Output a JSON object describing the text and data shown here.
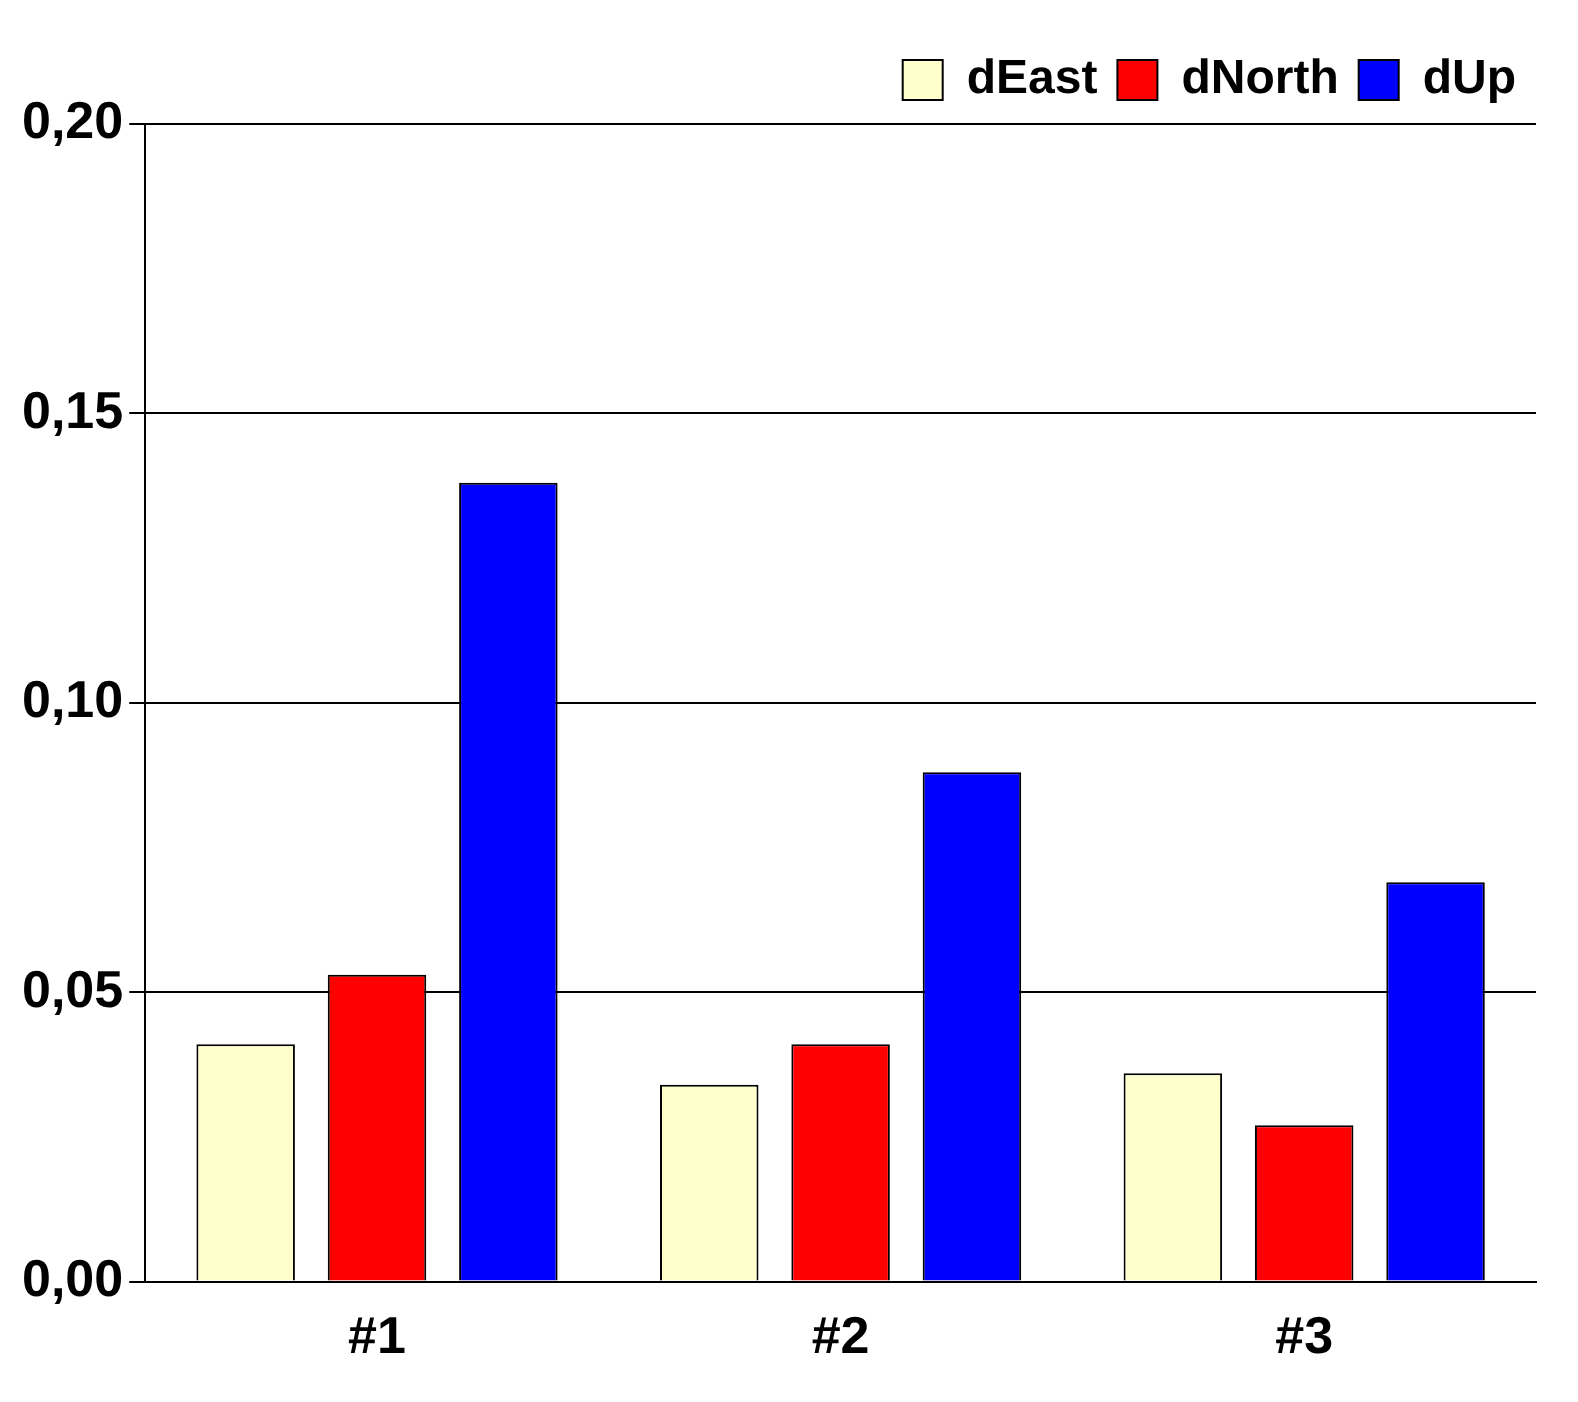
{
  "chart_data": {
    "type": "bar",
    "categories": [
      "#1",
      "#2",
      "#3"
    ],
    "series": [
      {
        "name": "dEast",
        "color": "#ffffcc",
        "values": [
          0.041,
          0.034,
          0.036
        ]
      },
      {
        "name": "dNorth",
        "color": "#ff0000",
        "values": [
          0.053,
          0.041,
          0.027
        ]
      },
      {
        "name": "dUp",
        "color": "#0000ff",
        "values": [
          0.138,
          0.088,
          0.069
        ]
      }
    ],
    "ylim": [
      0,
      0.2
    ],
    "yticks": [
      {
        "value": 0,
        "label": "0,00"
      },
      {
        "value": 0.05,
        "label": "0,05"
      },
      {
        "value": 0.1,
        "label": "0,10"
      },
      {
        "value": 0.15,
        "label": "0,15"
      },
      {
        "value": 0.2,
        "label": "0,20"
      }
    ],
    "grid": "y",
    "legend": "top right"
  }
}
